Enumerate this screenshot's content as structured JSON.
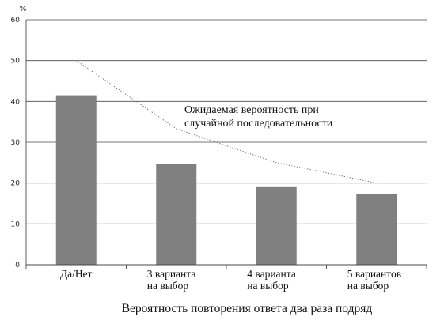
{
  "chart_data": {
    "type": "bar",
    "ylabel": "%",
    "xlabel": "Вероятность повторения ответа два раза подряд",
    "categories": [
      [
        "Да/Нет"
      ],
      [
        "3 варианта",
        "на выбор"
      ],
      [
        "4 варианта",
        "на выбор"
      ],
      [
        "5 вариантов",
        "на выбор"
      ]
    ],
    "series": [
      {
        "kind": "bar",
        "values": [
          41.5,
          24.7,
          19.0,
          17.4
        ],
        "color": "#808080"
      },
      {
        "kind": "line",
        "style": "dotted",
        "values": [
          50,
          33.3,
          25,
          20
        ],
        "color": "#666666"
      }
    ],
    "ylim": [
      0,
      60
    ],
    "yticks": [
      0,
      10,
      20,
      30,
      40,
      50,
      60
    ],
    "grid": true,
    "annotation": [
      "Ожидаемая вероятность при",
      "случайной последовательности"
    ]
  }
}
